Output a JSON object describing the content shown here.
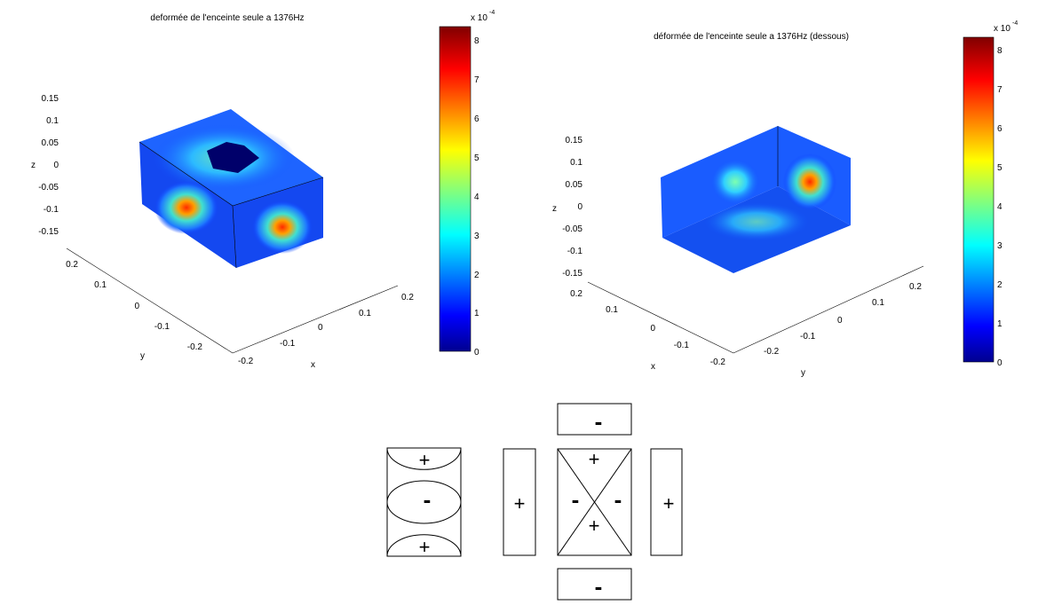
{
  "left_plot": {
    "title": "deformée de l'enceinte seule a 1376Hz",
    "colorbar_exponent": "x 10",
    "colorbar_exponent_power": "-4",
    "colorbar_ticks": [
      "0",
      "1",
      "2",
      "3",
      "4",
      "5",
      "6",
      "7",
      "8"
    ],
    "z_ticks": [
      "0.15",
      "0.1",
      "0.05",
      "0",
      "-0.05",
      "-0.1",
      "-0.15"
    ],
    "y_ticks": [
      "0.2",
      "0.1",
      "0",
      "-0.1",
      "-0.2"
    ],
    "x_ticks": [
      "-0.2",
      "-0.1",
      "0",
      "0.1",
      "0.2"
    ],
    "z_label": "z",
    "y_label": "y",
    "x_label": "x"
  },
  "right_plot": {
    "title": "déformée de l'enceinte seule a 1376Hz (dessous)",
    "colorbar_exponent": "x 10",
    "colorbar_exponent_power": "-4",
    "colorbar_ticks": [
      "0",
      "1",
      "2",
      "3",
      "4",
      "5",
      "6",
      "7",
      "8"
    ],
    "z_ticks": [
      "0.15",
      "0.1",
      "0.05",
      "0",
      "-0.05",
      "-0.1",
      "-0.15"
    ],
    "x_ticks": [
      "0.2",
      "0.1",
      "0",
      "-0.1",
      "-0.2"
    ],
    "y_ticks": [
      "-0.2",
      "-0.1",
      "0",
      "0.1",
      "0.2"
    ],
    "z_label": "z",
    "x_label": "x",
    "y_label": "y"
  },
  "sign_diagram": {
    "top_panel": "-",
    "bottom_panel": "-",
    "left_face_top": "+",
    "left_face_middle": "-",
    "left_face_bottom": "+",
    "left_strip": "+",
    "right_strip": "+",
    "center_top": "+",
    "center_left": "-",
    "center_right": "-",
    "center_bottom": "+"
  },
  "colormap": "jet"
}
